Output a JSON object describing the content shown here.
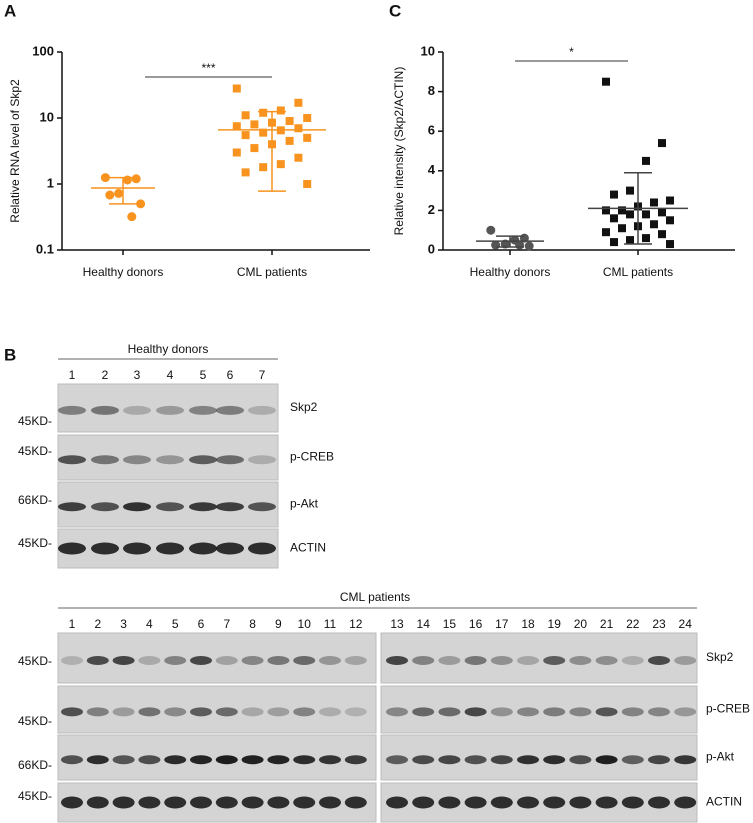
{
  "panels": {
    "a": "A",
    "b": "B",
    "c": "C"
  },
  "chart_data": [
    {
      "type": "scatter",
      "y_label": "Relative RNA level of Skp2",
      "categories": [
        "Healthy donors",
        "CML patients"
      ],
      "significance": "***",
      "log_scale": true,
      "ylim": [
        0.1,
        100
      ],
      "yticks": [
        0.1,
        1,
        10,
        100
      ],
      "color": "#f7931e",
      "markers": [
        "circle",
        "square"
      ],
      "points": [
        [
          1.25,
          1.2,
          1.15,
          0.72,
          0.68,
          0.5,
          0.32
        ],
        [
          28,
          17,
          13,
          12,
          11,
          10,
          9,
          8.5,
          8,
          7.5,
          7,
          6.5,
          6,
          5.5,
          5,
          4.5,
          4,
          3.5,
          3,
          2.5,
          2,
          1.8,
          1.5,
          1.0
        ]
      ],
      "means": [
        0.87,
        6.6
      ],
      "lower": [
        0.5,
        0.78
      ],
      "upper": [
        1.25,
        12.5
      ]
    },
    {
      "type": "scatter",
      "y_label": "Relative intensity  (Skp2/ACTIN)",
      "categories": [
        "Healthy donors",
        "CML patients"
      ],
      "significance": "*",
      "log_scale": false,
      "ylim": [
        0,
        10
      ],
      "yticks": [
        0,
        2,
        4,
        6,
        8,
        10
      ],
      "color": "#111111",
      "markers": [
        "circle",
        "square"
      ],
      "points": [
        [
          1.0,
          0.6,
          0.5,
          0.3,
          0.25,
          0.2,
          0.25
        ],
        [
          8.5,
          5.4,
          4.5,
          3.0,
          2.8,
          2.5,
          2.4,
          2.2,
          2.0,
          2.0,
          1.9,
          1.8,
          1.8,
          1.6,
          1.5,
          1.3,
          1.2,
          1.1,
          0.9,
          0.8,
          0.6,
          0.5,
          0.4,
          0.3
        ]
      ],
      "means": [
        0.45,
        2.1
      ],
      "lower": [
        0.15,
        0.3
      ],
      "upper": [
        0.7,
        3.9
      ]
    }
  ],
  "blots": [
    {
      "title": "Healthy donors",
      "lanes": [
        "1",
        "2",
        "3",
        "4",
        "5",
        "6",
        "7"
      ],
      "rows": [
        {
          "marker": "45KD-",
          "protein": "Skp2"
        },
        {
          "marker": "45KD-",
          "protein": "p-CREB"
        },
        {
          "marker": "66KD-",
          "protein": "p-Akt"
        },
        {
          "marker": "45KD-",
          "protein": "ACTIN"
        }
      ]
    },
    {
      "title": "CML patients",
      "lanes": [
        "1",
        "2",
        "3",
        "4",
        "5",
        "6",
        "7",
        "8",
        "9",
        "10",
        "11",
        "12",
        "13",
        "14",
        "15",
        "16",
        "17",
        "18",
        "19",
        "20",
        "21",
        "22",
        "23",
        "24"
      ],
      "rows": [
        {
          "marker": "45KD-",
          "protein": "Skp2"
        },
        {
          "marker": "45KD-",
          "protein": "p-CREB"
        },
        {
          "marker": "66KD-",
          "protein": "p-Akt"
        },
        {
          "marker": "45KD-",
          "protein": "ACTIN"
        }
      ]
    }
  ]
}
